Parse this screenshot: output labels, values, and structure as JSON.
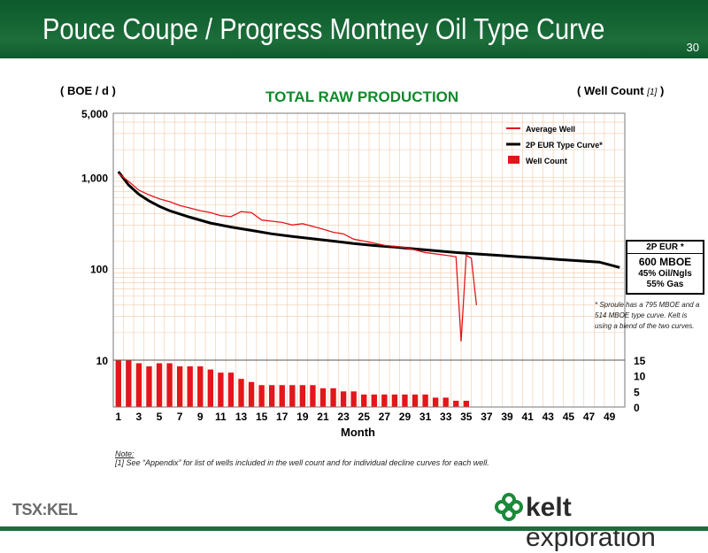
{
  "header": {
    "title": "Pouce Coupe / Progress Montney Oil Type Curve",
    "page_number": "30"
  },
  "chart_labels": {
    "left_axis_unit": "( BOE / d )",
    "right_axis_unit_prefix": "( Well Count ",
    "right_axis_unit_ref": "[1]",
    "right_axis_unit_suffix": " )",
    "title": "TOTAL RAW PRODUCTION",
    "xlabel": "Month"
  },
  "eur_box": {
    "line1": "2P EUR *",
    "line2": "600 MBOE",
    "line3": "45% Oil/Ngls",
    "line4": "55% Gas"
  },
  "side_note": "* Sproule has a 795 MBOE and a 514 MBOE type curve. Kelt is using a blend of the two curves.",
  "note": {
    "heading": "Note:",
    "text": "[1] See “Appendix” for list of wells included in the well count and for individual decline curves for each well."
  },
  "footer": {
    "exchange": "TSX:KEL",
    "company_bold": "kelt",
    "company_light": " exploration"
  },
  "colors": {
    "brand_green": "#1c6e3a",
    "title_green": "#108a2c",
    "series_red": "#e3161b",
    "type_curve": "#000000",
    "grid_orange": "#f3c9a6"
  },
  "chart_data": {
    "type": "line",
    "title": "TOTAL RAW PRODUCTION",
    "xlabel": "Month",
    "ylabel": "( BOE / d )",
    "y2label": "( Well Count [1] )",
    "xlim": [
      1,
      50
    ],
    "ylim": [
      10,
      5000
    ],
    "yscale": "log",
    "y2lim": [
      0,
      15
    ],
    "x_ticks": [
      "1",
      "3",
      "5",
      "7",
      "9",
      "11",
      "13",
      "15",
      "17",
      "19",
      "21",
      "23",
      "25",
      "27",
      "29",
      "31",
      "33",
      "35",
      "37",
      "39",
      "41",
      "43",
      "45",
      "47",
      "49"
    ],
    "y_ticks": [
      "5,000",
      "1,000",
      "100",
      "10"
    ],
    "y2_ticks": [
      "15",
      "10",
      "5",
      "0"
    ],
    "legend": [
      "Average Well",
      "2P EUR Type Curve*",
      "Well Count"
    ],
    "legend_position": "top-right",
    "grid": true,
    "series": [
      {
        "name": "Average Well",
        "type": "line",
        "x": [
          1,
          2,
          3,
          4,
          5,
          6,
          7,
          8,
          9,
          10,
          11,
          12,
          13,
          14,
          15,
          16,
          17,
          18,
          19,
          20,
          21,
          22,
          23,
          24,
          25,
          26,
          27,
          28,
          29,
          30,
          31,
          32,
          33,
          34,
          34.5,
          35,
          35.5,
          36
        ],
        "y": [
          1100,
          900,
          720,
          640,
          580,
          540,
          490,
          460,
          430,
          410,
          380,
          370,
          420,
          410,
          340,
          330,
          320,
          300,
          310,
          290,
          270,
          250,
          240,
          210,
          200,
          190,
          180,
          175,
          170,
          160,
          150,
          145,
          140,
          135,
          16,
          140,
          130,
          40
        ]
      },
      {
        "name": "2P EUR Type Curve*",
        "type": "line",
        "x": [
          1,
          2,
          3,
          4,
          5,
          6,
          8,
          10,
          12,
          14,
          16,
          18,
          20,
          22,
          24,
          26,
          28,
          30,
          32,
          34,
          36,
          38,
          40,
          42,
          44,
          46,
          48,
          50
        ],
        "y": [
          1150,
          820,
          650,
          550,
          480,
          430,
          365,
          315,
          285,
          262,
          240,
          225,
          212,
          200,
          188,
          179,
          172,
          164,
          157,
          150,
          145,
          140,
          135,
          131,
          126,
          122,
          118,
          103
        ]
      },
      {
        "name": "Well Count",
        "type": "bar",
        "axis": "right",
        "x": [
          1,
          2,
          3,
          4,
          5,
          6,
          7,
          8,
          9,
          10,
          11,
          12,
          13,
          14,
          15,
          16,
          17,
          18,
          19,
          20,
          21,
          22,
          23,
          24,
          25,
          26,
          27,
          28,
          29,
          30,
          31,
          32,
          33,
          34,
          35
        ],
        "values": [
          15,
          15,
          14,
          13,
          14,
          14,
          13,
          13,
          13,
          12,
          11,
          11,
          9,
          8,
          7,
          7,
          7,
          7,
          7,
          7,
          6,
          6,
          5,
          5,
          4,
          4,
          4,
          4,
          4,
          4,
          4,
          3,
          3,
          2,
          2
        ]
      }
    ]
  }
}
